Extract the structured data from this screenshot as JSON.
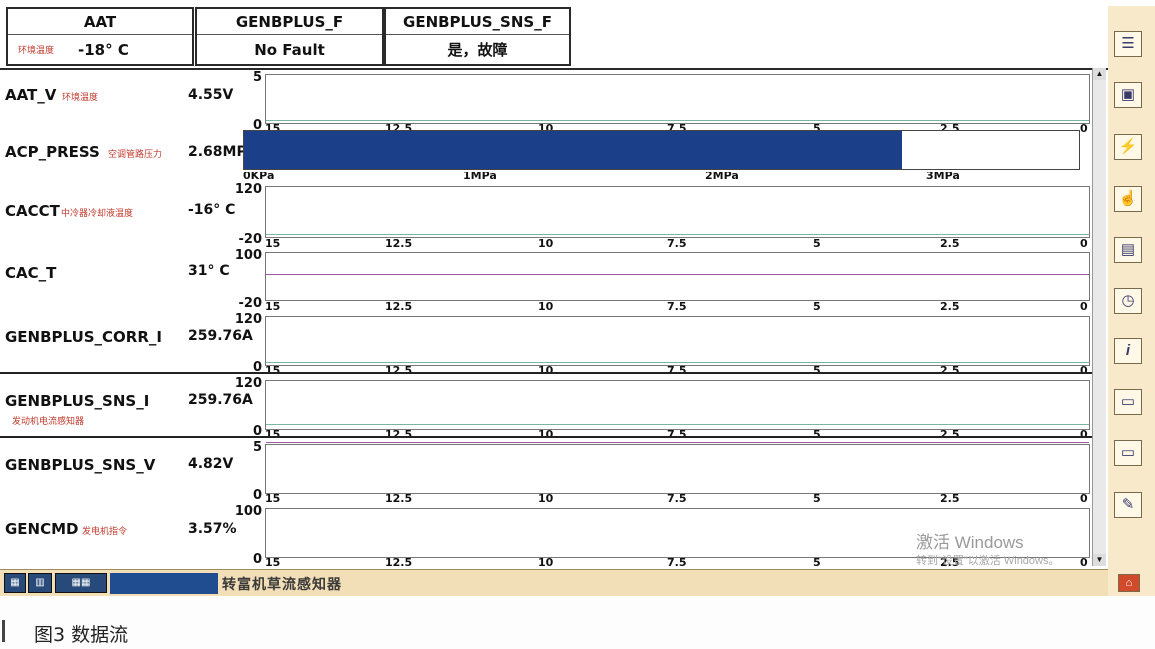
{
  "header": {
    "cells": [
      {
        "name": "AAT",
        "sub": "环境温度",
        "value": "-18° C"
      },
      {
        "name": "GENBPLUS_F",
        "value": "No Fault"
      },
      {
        "name": "GENBPLUS_SNS_F",
        "value": "是，故障"
      }
    ]
  },
  "x_ticks": [
    "15",
    "12.5",
    "10",
    "7.5",
    "5",
    "2.5",
    "0"
  ],
  "rows": [
    {
      "name": "AAT_V",
      "cn": "环境温度",
      "value": "4.55V",
      "ymax": "5",
      "ymin": "0"
    },
    {
      "name": "ACP_PRESS",
      "cn": "空调管路压力",
      "value": "2.68MPa"
    },
    {
      "name": "CACCT",
      "cn": "中冷器冷却液温度",
      "value": "-16° C",
      "ymax": "120",
      "ymin": "-20"
    },
    {
      "name": "CAC_T",
      "cn": "",
      "value": "31° C",
      "ymax": "100",
      "ymin": "-20"
    },
    {
      "name": "GENBPLUS_CORR_I",
      "cn": "",
      "value": "259.76A",
      "ymax": "120",
      "ymin": "0"
    },
    {
      "name": "GENBPLUS_SNS_I",
      "cn": "发动机电流感知器",
      "value": "259.76A",
      "ymax": "120",
      "ymin": "0"
    },
    {
      "name": "GENBPLUS_SNS_V",
      "cn": "",
      "value": "4.82V",
      "ymax": "5",
      "ymin": "0"
    },
    {
      "name": "GENCMD",
      "cn": "发电机指令",
      "value": "3.57%",
      "ymax": "100",
      "ymin": "0"
    }
  ],
  "bar_gauge": {
    "ticks": [
      "0KPa",
      "1MPa",
      "2MPa",
      "3MPa"
    ],
    "value": 2.68,
    "max": 3.4,
    "color": "#1c3f8a"
  },
  "toolbar": {
    "icons": [
      "list-icon",
      "camera-icon",
      "graph-icon",
      "hand-icon",
      "report-icon",
      "stopwatch-icon",
      "info-icon",
      "monitor-icon",
      "monitor2-icon",
      "edit-icon",
      "home-icon"
    ]
  },
  "statusbar": {
    "text": "转富机草流感知器"
  },
  "watermark": {
    "line1": "激活 Windows",
    "line2": "转到\"设置\"以激活 Windows。"
  },
  "caption": "图3   数据流"
}
